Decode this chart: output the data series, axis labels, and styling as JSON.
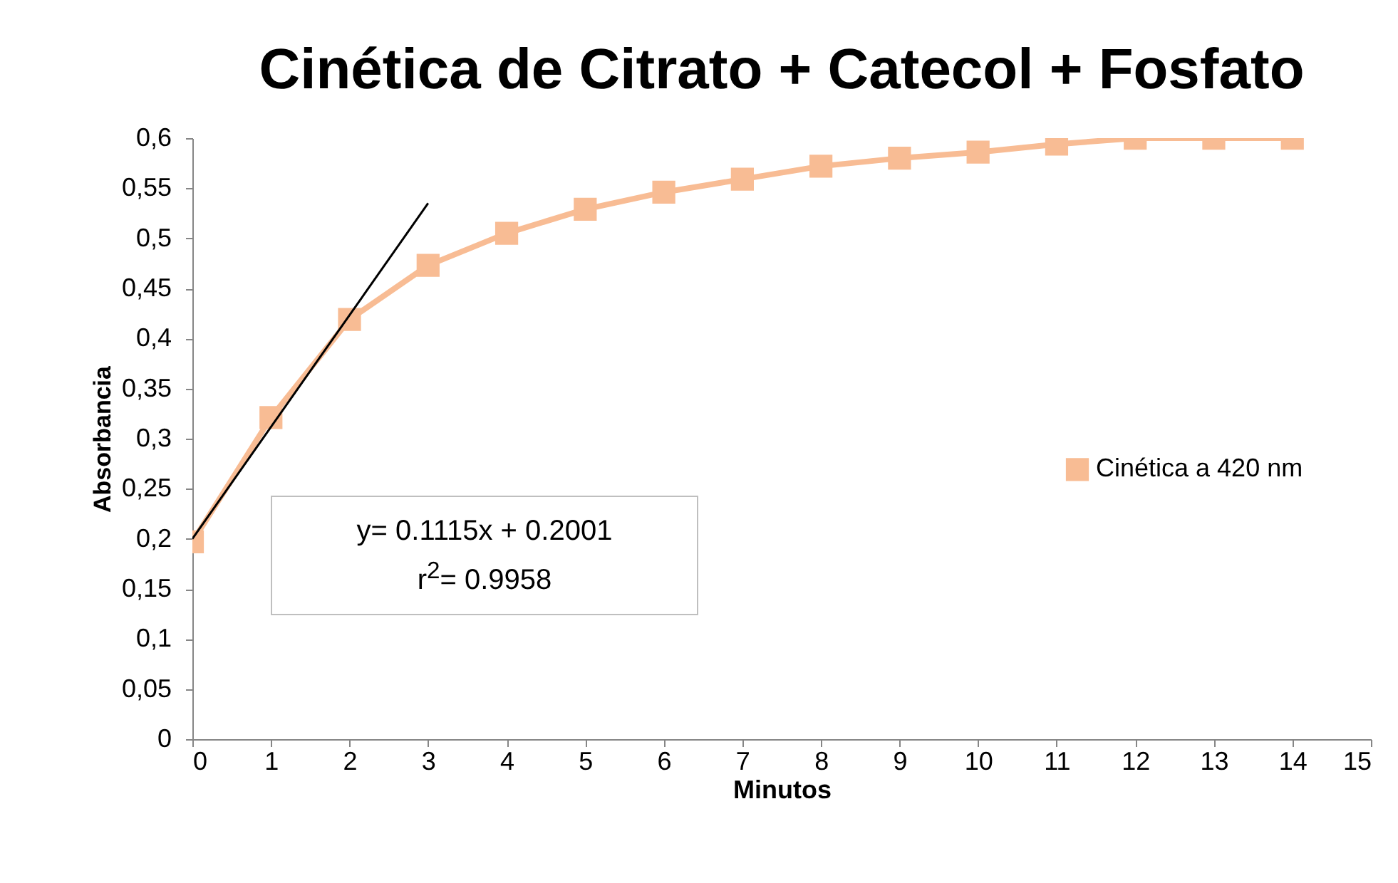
{
  "chart_data": {
    "type": "line",
    "title": "Cinética de Citrato + Catecol + Fosfato",
    "xlabel": "Minutos",
    "ylabel": "Absorbancia",
    "x": [
      0,
      1,
      2,
      3,
      4,
      5,
      6,
      7,
      8,
      9,
      10,
      11,
      12,
      13,
      14
    ],
    "series": [
      {
        "name": "Cinética a 420 nm",
        "color": "#f8bc94",
        "marker": "square",
        "values": [
          0.197,
          0.321,
          0.419,
          0.473,
          0.505,
          0.529,
          0.546,
          0.559,
          0.572,
          0.58,
          0.586,
          0.594,
          0.6,
          0.6,
          0.6
        ]
      },
      {
        "type": "line",
        "color": "#000000",
        "marker": "none",
        "x": [
          0,
          3
        ],
        "values": [
          0.2,
          0.535
        ]
      }
    ],
    "annotations": [
      "y= 0.1115x + 0.2001",
      "r$^{2}$= 0.9958"
    ],
    "xlim": [
      0,
      15
    ],
    "xticks": [
      0,
      1,
      2,
      3,
      4,
      5,
      6,
      7,
      8,
      9,
      10,
      11,
      12,
      13,
      14,
      15
    ],
    "ylim": [
      0,
      0.6
    ],
    "yticks": [
      0,
      {
        "value": 0.05,
        "label": "0,05"
      },
      {
        "value": 0.1,
        "label": "0,1"
      },
      {
        "value": 0.15,
        "label": "0,15"
      },
      {
        "value": 0.2,
        "label": "0,2"
      },
      {
        "value": 0.25,
        "label": "0,25"
      },
      {
        "value": 0.3,
        "label": "0,3"
      },
      {
        "value": 0.35,
        "label": "0,35"
      },
      {
        "value": 0.4,
        "label": "0,4"
      },
      {
        "value": 0.45,
        "label": "0,45"
      },
      {
        "value": 0.5,
        "label": "0,5"
      },
      {
        "value": 0.55,
        "label": "0,55"
      },
      {
        "value": 0.6,
        "label": "0,6"
      }
    ],
    "grid": false,
    "legend": "right"
  }
}
